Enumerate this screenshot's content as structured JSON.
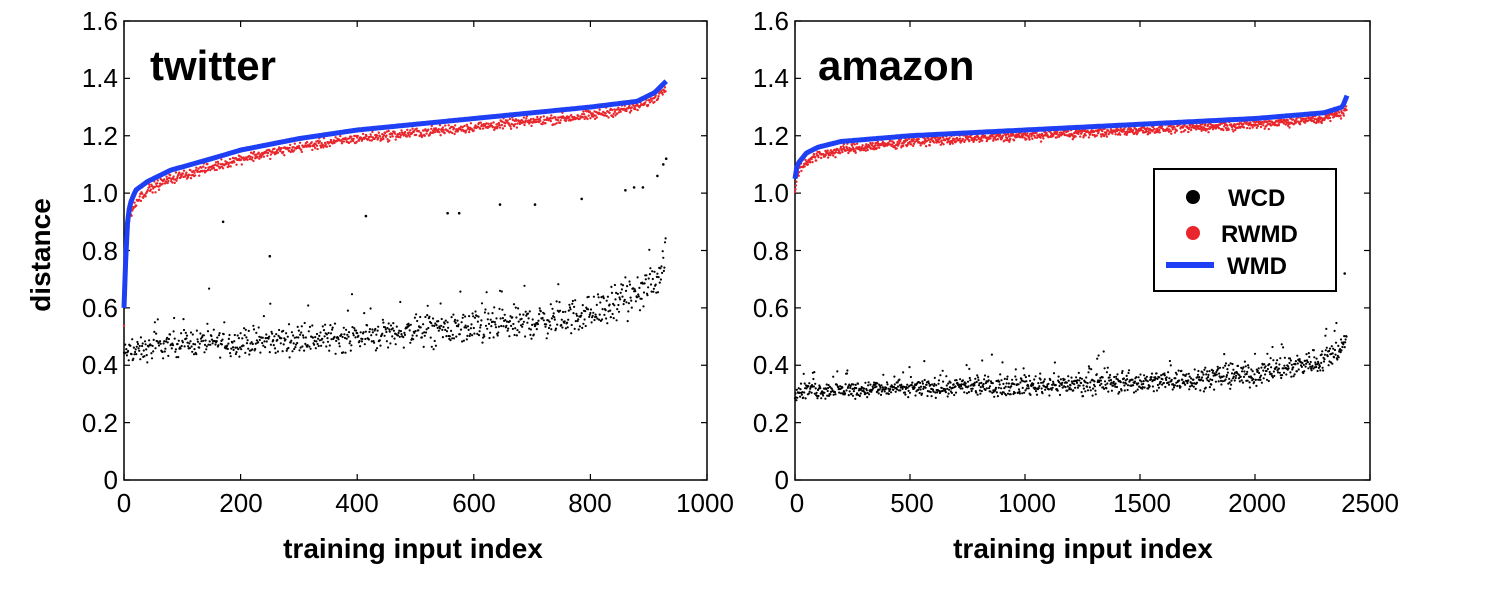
{
  "chart_data": [
    {
      "type": "scatter",
      "title": "twitter",
      "xlabel": "training input index",
      "ylabel": "distance",
      "xlim": [
        0,
        1000
      ],
      "ylim": [
        0,
        1.6
      ],
      "xticks": [
        "0",
        "200",
        "400",
        "600",
        "800",
        "1000"
      ],
      "yticks": [
        "0",
        "0.2",
        "0.4",
        "0.6",
        "0.8",
        "1.0",
        "1.2",
        "1.4",
        "1.6"
      ],
      "n_points": 930,
      "series": [
        {
          "name": "WMD",
          "kind": "line",
          "color": "#1f3ff5",
          "x": [
            0,
            5,
            10,
            20,
            40,
            80,
            150,
            200,
            300,
            400,
            500,
            600,
            700,
            800,
            880,
            910,
            930
          ],
          "y": [
            0.6,
            0.88,
            0.96,
            1.01,
            1.04,
            1.08,
            1.12,
            1.15,
            1.19,
            1.22,
            1.24,
            1.26,
            1.28,
            1.3,
            1.32,
            1.35,
            1.39
          ]
        },
        {
          "name": "RWMD",
          "kind": "scatter",
          "color": "#e8262c",
          "trend_x": [
            0,
            5,
            10,
            20,
            40,
            80,
            150,
            200,
            300,
            400,
            500,
            600,
            700,
            800,
            880,
            910,
            930
          ],
          "trend_y": [
            0.55,
            0.83,
            0.92,
            0.97,
            1.01,
            1.05,
            1.09,
            1.12,
            1.16,
            1.19,
            1.21,
            1.23,
            1.25,
            1.27,
            1.3,
            1.33,
            1.37
          ],
          "spread": 0.025
        },
        {
          "name": "WCD",
          "kind": "scatter",
          "color": "#000000",
          "trend_x": [
            0,
            100,
            200,
            300,
            400,
            500,
            600,
            700,
            800,
            880,
            920,
            930
          ],
          "trend_y": [
            0.44,
            0.48,
            0.48,
            0.49,
            0.5,
            0.52,
            0.53,
            0.55,
            0.58,
            0.64,
            0.72,
            0.8
          ],
          "spread": 0.06,
          "outliers_x": [
            170,
            250,
            415,
            555,
            575,
            645,
            705,
            785,
            860,
            875,
            890,
            915,
            925,
            930
          ],
          "outliers_y": [
            0.9,
            0.78,
            0.92,
            0.93,
            0.93,
            0.96,
            0.96,
            0.98,
            1.01,
            1.02,
            1.02,
            1.06,
            1.1,
            1.12
          ]
        }
      ]
    },
    {
      "type": "scatter",
      "title": "amazon",
      "xlabel": "training input index",
      "ylabel": "",
      "xlim": [
        0,
        2500
      ],
      "ylim": [
        0,
        1.6
      ],
      "xticks": [
        "0",
        "500",
        "1000",
        "1500",
        "2000",
        "2500"
      ],
      "yticks": [
        "0",
        "0.2",
        "0.4",
        "0.6",
        "0.8",
        "1.0",
        "1.2",
        "1.4",
        "1.6"
      ],
      "n_points": 2400,
      "legend": {
        "position": "center-right",
        "entries": [
          "WCD",
          "RWMD",
          "WMD"
        ]
      },
      "series": [
        {
          "name": "WMD",
          "kind": "line",
          "color": "#1f3ff5",
          "x": [
            0,
            10,
            50,
            100,
            200,
            500,
            1000,
            1500,
            2000,
            2300,
            2380,
            2400
          ],
          "y": [
            1.05,
            1.1,
            1.14,
            1.16,
            1.18,
            1.2,
            1.22,
            1.24,
            1.26,
            1.28,
            1.3,
            1.34
          ]
        },
        {
          "name": "RWMD",
          "kind": "scatter",
          "color": "#e8262c",
          "trend_x": [
            0,
            10,
            50,
            100,
            200,
            500,
            1000,
            1500,
            2000,
            2300,
            2380,
            2400
          ],
          "trend_y": [
            1.0,
            1.07,
            1.11,
            1.13,
            1.15,
            1.18,
            1.2,
            1.22,
            1.24,
            1.26,
            1.28,
            1.3
          ],
          "spread": 0.025
        },
        {
          "name": "WCD",
          "kind": "scatter",
          "color": "#000000",
          "trend_x": [
            0,
            500,
            1000,
            1500,
            2000,
            2300,
            2400
          ],
          "trend_y": [
            0.31,
            0.32,
            0.33,
            0.34,
            0.37,
            0.42,
            0.48
          ],
          "spread": 0.04,
          "outliers_x": [
            2390
          ],
          "outliers_y": [
            0.72
          ]
        }
      ]
    }
  ]
}
